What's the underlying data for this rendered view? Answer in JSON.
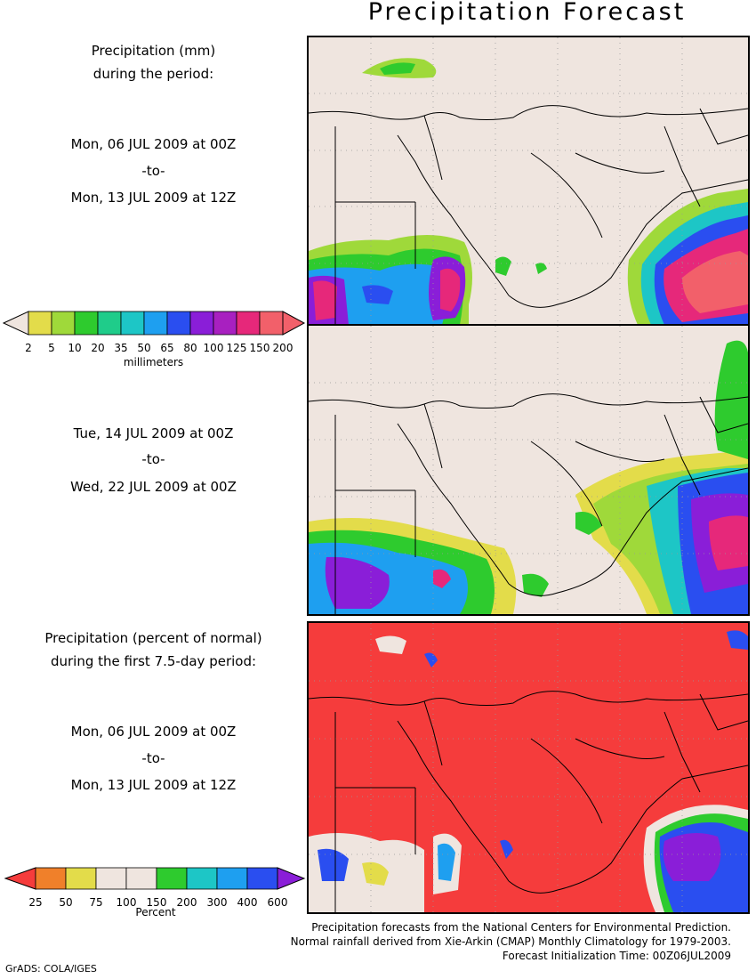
{
  "title": "Precipitation Forecast",
  "panel1": {
    "heading": [
      "Precipitation (mm)",
      "during the period:"
    ],
    "start": "Mon, 06 JUL 2009 at 00Z",
    "to": "-to-",
    "end": "Mon, 13 JUL 2009 at 12Z"
  },
  "colorbar_mm": {
    "labels": [
      "2",
      "5",
      "10",
      "20",
      "35",
      "50",
      "65",
      "80",
      "100",
      "125",
      "150",
      "200"
    ],
    "colors": [
      "#e3dc4a",
      "#9fd93a",
      "#2ecb2e",
      "#1fcc8a",
      "#1dc6c6",
      "#1e9ff0",
      "#2a4ef0",
      "#8a1ed8",
      "#a820c0",
      "#e6287a",
      "#f2606a"
    ],
    "unit": "millimeters"
  },
  "panel2": {
    "start": "Tue, 14 JUL 2009 at 00Z",
    "to": "-to-",
    "end": "Wed, 22 JUL 2009 at 00Z"
  },
  "panel3": {
    "heading": [
      "Precipitation (percent of normal)",
      "during the first 7.5-day period:"
    ],
    "start": "Mon, 06 JUL 2009 at 00Z",
    "to": "-to-",
    "end": "Mon, 13 JUL 2009 at 12Z"
  },
  "colorbar_pct": {
    "labels": [
      "25",
      "50",
      "75",
      "100",
      "150",
      "200",
      "300",
      "400",
      "600"
    ],
    "colors": [
      "#f0802a",
      "#e3dc4a",
      "#efe5df",
      "#efe5df",
      "#2ecb2e",
      "#1dc6c6",
      "#1e9ff0",
      "#2a4ef0"
    ],
    "unit": "Percent"
  },
  "footer": [
    "Precipitation forecasts from the National Centers for Environmental Prediction.",
    "Normal rainfall derived from Xie-Arkin (CMAP) Monthly Climatology for 1979-2003.",
    "Forecast Initialization Time: 00Z06JUL2009"
  ],
  "credit": "GrADS: COLA/IGES"
}
